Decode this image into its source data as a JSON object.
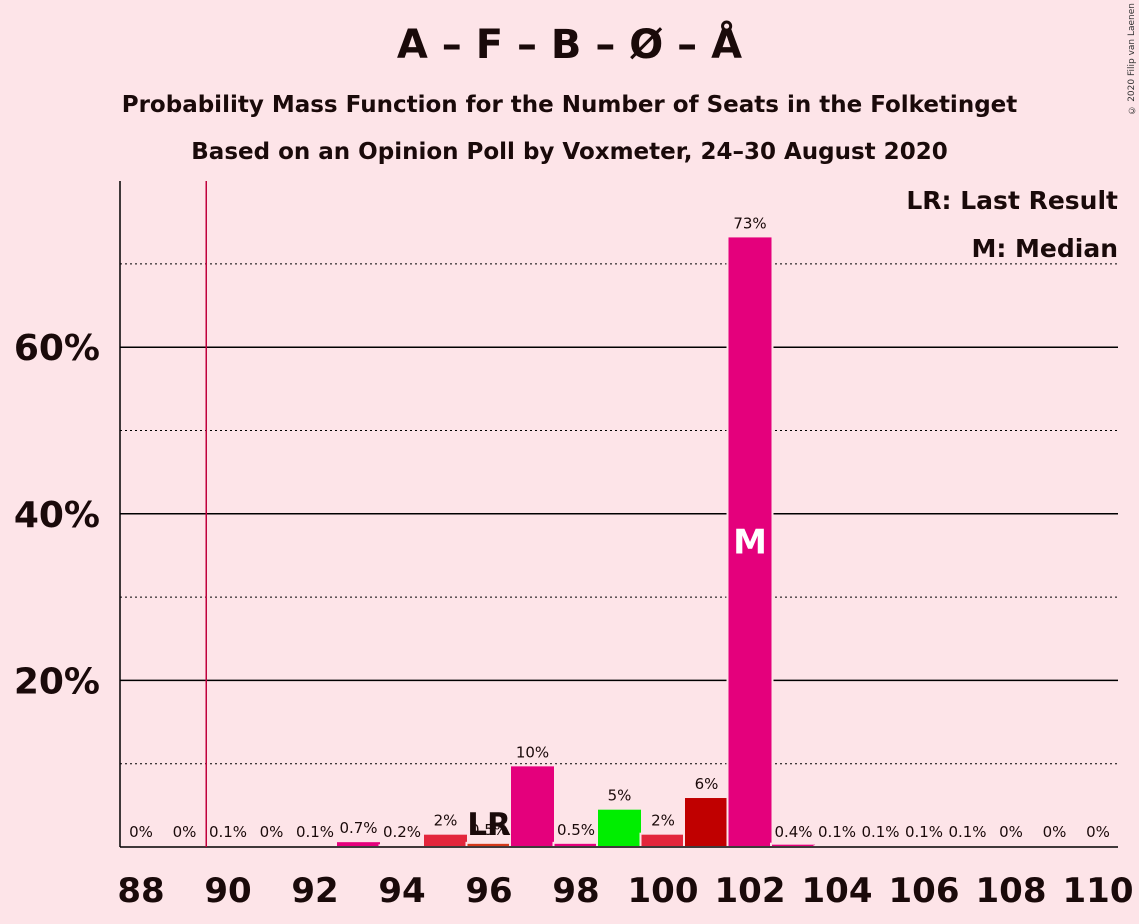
{
  "chart_data": {
    "type": "bar",
    "title": "A – F – B – Ø – Å",
    "subtitle": "Probability Mass Function for the Number of Seats in the Folketinget",
    "subtitle2": "Based on an Opinion Poll by Voxmeter, 24–30 August 2020",
    "categories": [
      88,
      89,
      90,
      91,
      92,
      93,
      94,
      95,
      96,
      97,
      98,
      99,
      100,
      101,
      102,
      103,
      104,
      105,
      106,
      107,
      108,
      109,
      110
    ],
    "values": [
      0,
      0,
      0.1,
      0,
      0.1,
      0.7,
      0.2,
      2,
      0.5,
      10,
      0.5,
      5,
      2,
      6,
      73,
      0.4,
      0.1,
      0.1,
      0.1,
      0.1,
      0,
      0,
      0
    ],
    "bar_heights": [
      0,
      0,
      0.1,
      0,
      0.1,
      0.7,
      0.2,
      1.6,
      0.5,
      9.8,
      0.5,
      4.6,
      1.6,
      6.0,
      73.3,
      0.4,
      0.1,
      0.1,
      0.1,
      0.1,
      0,
      0,
      0
    ],
    "value_labels": [
      "0%",
      "0%",
      "0.1%",
      "0%",
      "0.1%",
      "0.7%",
      "0.2%",
      "2%",
      "0.5%",
      "10%",
      "0.5%",
      "5%",
      "2%",
      "6%",
      "73%",
      "0.4%",
      "0.1%",
      "0.1%",
      "0.1%",
      "0.1%",
      "0%",
      "0%",
      "0%"
    ],
    "bar_colors": [
      "#e4007c",
      "#e4007c",
      "#e4007c",
      "#e4007c",
      "#e4007c",
      "#e4007c",
      "#e4007c",
      "#e3263c",
      "#d4381a",
      "#e4007c",
      "#e4007c",
      "#00ee00",
      "#e3263c",
      "#c00000",
      "#e4007c",
      "#e4007c",
      "#e4007c",
      "#e4007c",
      "#e4007c",
      "#e4007c",
      "#e4007c",
      "#e4007c",
      "#e4007c"
    ],
    "x_ticks": [
      "88",
      "90",
      "92",
      "94",
      "96",
      "98",
      "100",
      "102",
      "104",
      "106",
      "108",
      "110"
    ],
    "y_ticks": [
      "20%",
      "40%",
      "60%"
    ],
    "ylim": [
      0,
      80
    ],
    "last_result": 89.5,
    "last_result_label": "LR",
    "lr_label_seat": 96,
    "median_seat": 102,
    "median_label": "M",
    "legend": [
      "LR: Last Result",
      "M: Median"
    ],
    "grid": true,
    "legend_position": "top-right"
  },
  "copyright": "© 2020 Filip van Laenen",
  "colors": {
    "background": "#fde4e8",
    "last_result_line": "#c0003c",
    "axis": "#000000"
  }
}
